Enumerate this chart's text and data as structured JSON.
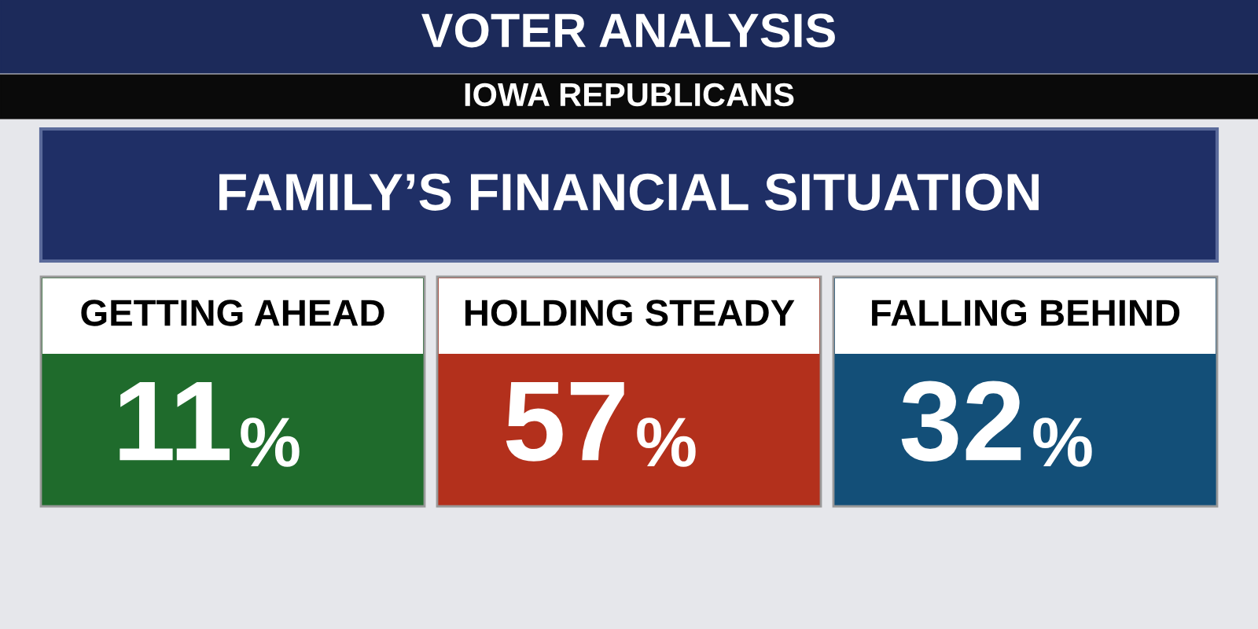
{
  "chart_data": {
    "type": "other",
    "title": "FAMILY’S FINANCIAL SITUATION",
    "subtitle": "IOWA REPUBLICANS",
    "annotations": [
      "VOTER ANALYSIS"
    ],
    "categories": [
      "GETTING AHEAD",
      "HOLDING STEADY",
      "FALLING BEHIND"
    ],
    "values": [
      11,
      57,
      32
    ],
    "value_labels": [
      "11%",
      "57%",
      "32%"
    ],
    "colors": [
      "#1f6b2c",
      "#b3301c",
      "#134f78"
    ]
  }
}
